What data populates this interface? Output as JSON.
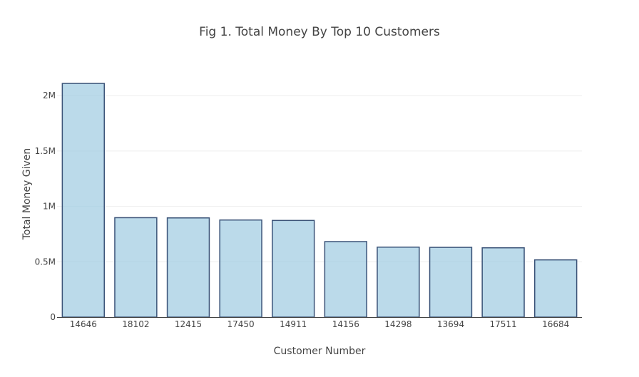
{
  "chart_data": {
    "type": "bar",
    "title": "Fig 1. Total Money By Top 10 Customers",
    "xlabel": "Customer Number",
    "ylabel": "Total Money Given",
    "categories": [
      "14646",
      "18102",
      "12415",
      "17450",
      "14911",
      "14156",
      "14298",
      "13694",
      "17511",
      "16684"
    ],
    "values": [
      2110000,
      898000,
      896000,
      877000,
      873000,
      682000,
      632000,
      630000,
      626000,
      517000
    ],
    "ylim": [
      0,
      2220000
    ],
    "yticks": [
      0,
      500000,
      1000000,
      1500000,
      2000000
    ],
    "ytick_labels": [
      "0",
      "0.5M",
      "1M",
      "1.5M",
      "2M"
    ],
    "grid": true,
    "colors": {
      "bar_fill": "#9ecae1",
      "bar_stroke": "#3b5378"
    }
  }
}
